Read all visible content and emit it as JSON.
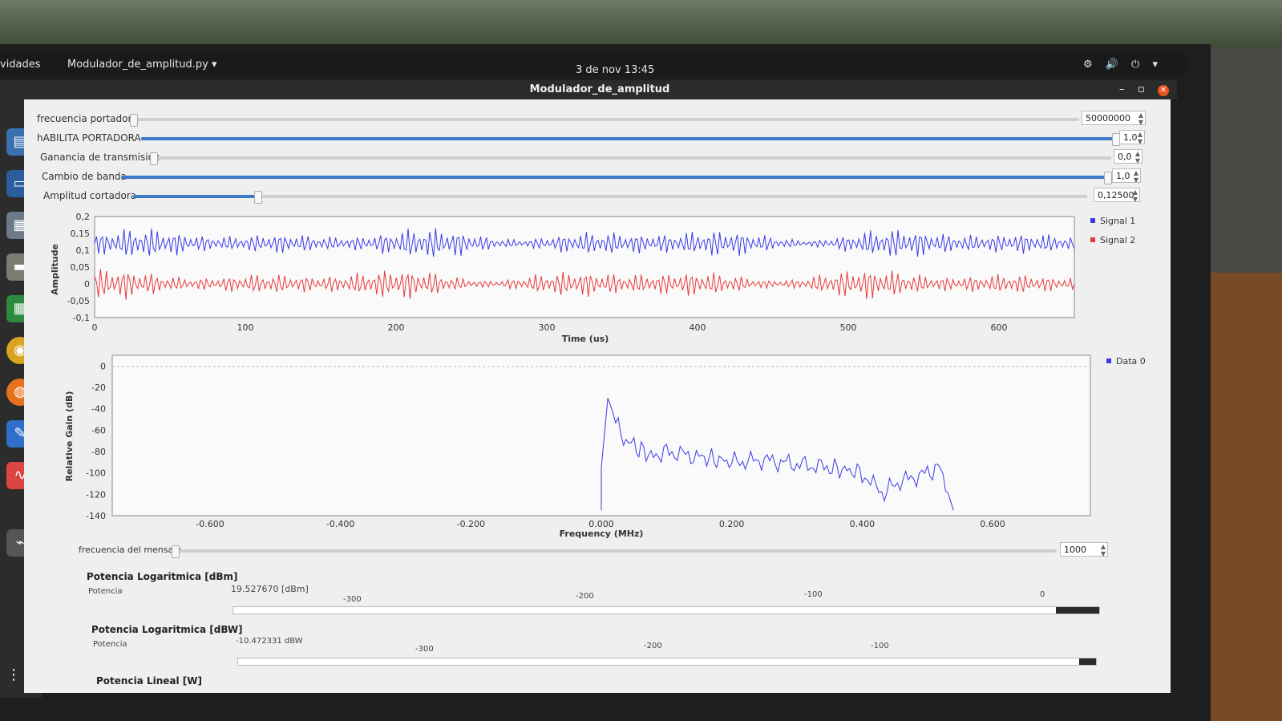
{
  "topbar": {
    "activities": "vidades",
    "app_menu": "Modulador_de_amplitud.py ▾",
    "clock": "3 de nov  13:45",
    "tray_icons": "⚙ 🔊 ⏻ ▾"
  },
  "window": {
    "title": "Modulador_de_amplitud",
    "minimize": "–",
    "maximize": "▫",
    "close": "✕"
  },
  "sliders": [
    {
      "label": "frecuencia portadora",
      "value": "50000000",
      "fill": 0.0
    },
    {
      "label": "hABILITA PORTADORA",
      "value": "1,0",
      "fill": 1.0
    },
    {
      "label": "Ganancia de transmisión",
      "value": "0,0",
      "fill": 0.0
    },
    {
      "label": "Cambio de banda",
      "value": "1,0",
      "fill": 1.0
    },
    {
      "label": "Amplitud cortadora",
      "value": "0,12500",
      "fill": 0.13
    }
  ],
  "time_plot": {
    "ylabel": "Amplitude",
    "xlabel": "Time (us)",
    "yticks": [
      "0,2",
      "0,15",
      "0,1",
      "0,05",
      "0",
      "-0,05",
      "-0,1"
    ],
    "xticks": [
      "0",
      "100",
      "200",
      "300",
      "400",
      "500",
      "600"
    ],
    "legend": [
      {
        "name": "Signal 1",
        "color": "#3a3ae8"
      },
      {
        "name": "Signal 2",
        "color": "#e83a3a"
      }
    ]
  },
  "freq_plot": {
    "ylabel": "Relative Gain (dB)",
    "xlabel": "Frequency (MHz)",
    "yticks": [
      "0",
      "-20",
      "-40",
      "-60",
      "-80",
      "-100",
      "-120",
      "-140"
    ],
    "xticks": [
      "-0.600",
      "-0.400",
      "-0.200",
      "0.000",
      "0.200",
      "0.400",
      "0.600"
    ],
    "legend": [
      {
        "name": "Data 0",
        "color": "#3a3ae8"
      }
    ]
  },
  "msg_slider": {
    "label": "frecuencia del mensaje",
    "value": "1000",
    "fill": 0.0
  },
  "dbm": {
    "title": "Potencia Logaritmica [dBm]",
    "label": "Potencia",
    "value": "19.527670 [dBm]",
    "ticks": [
      "-300",
      "-200",
      "-100",
      "0"
    ],
    "fill": 0.05
  },
  "dbw": {
    "title": "Potencia Logaritmica [dBW]",
    "label": "Potencia",
    "value": "-10.472331 dBW",
    "ticks": [
      "-300",
      "-200",
      "-100"
    ],
    "fill": 0.02
  },
  "linear": {
    "title": "Potencia Lineal [W]"
  },
  "chart_data": [
    {
      "type": "line",
      "xlabel": "Time (us)",
      "ylabel": "Amplitude",
      "xlim": [
        0,
        650
      ],
      "ylim": [
        -0.1,
        0.2
      ],
      "series": [
        {
          "name": "Signal 1",
          "offset": 0.12,
          "amplitude": 0.05
        },
        {
          "name": "Signal 2",
          "offset": 0.0,
          "amplitude": 0.05
        }
      ]
    },
    {
      "type": "line",
      "xlabel": "Frequency (MHz)",
      "ylabel": "Relative Gain (dB)",
      "xlim": [
        -0.75,
        0.75
      ],
      "ylim": [
        -140,
        10
      ],
      "series": [
        {
          "name": "Data 0",
          "x": [
            0.0,
            0.0,
            0.01,
            0.03,
            0.05,
            0.08,
            0.1,
            0.15,
            0.2,
            0.25,
            0.3,
            0.35,
            0.4,
            0.43,
            0.45,
            0.5,
            0.52,
            0.54
          ],
          "y": [
            -135,
            -95,
            -30,
            -65,
            -75,
            -85,
            -80,
            -85,
            -90,
            -88,
            -92,
            -95,
            -100,
            -120,
            -110,
            -100,
            -95,
            -135
          ]
        }
      ]
    }
  ]
}
